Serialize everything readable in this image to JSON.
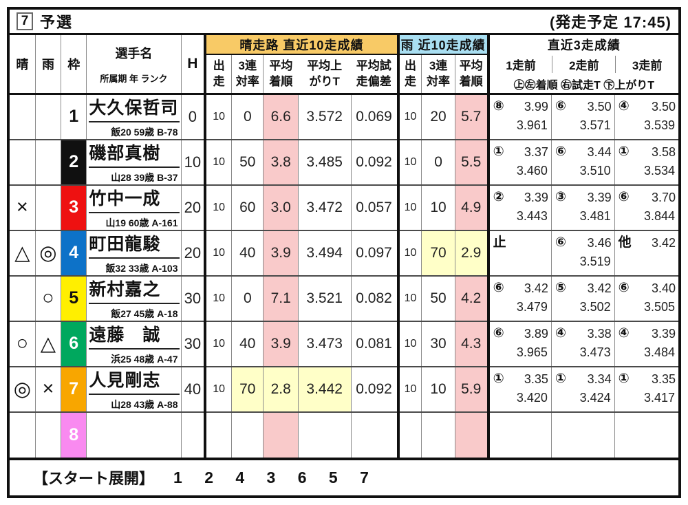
{
  "title": {
    "race_number": "7",
    "race_name": "予選",
    "start_time_label": "(発走予定 17:45)"
  },
  "header": {
    "sunny": "晴",
    "rain": "雨",
    "frame": "枠",
    "racer_name": "選手名",
    "racer_sub": "所属期 年 ランク",
    "handicap": "H",
    "sunny_group": "晴走路 直近10走成績",
    "rain_group": "雨 近10走成績",
    "recent3_group": "直近3走成績",
    "sunny_cols": [
      {
        "t": "出",
        "b": "走"
      },
      {
        "t": "3連",
        "b": "対率"
      },
      {
        "t": "平均",
        "b": "着順"
      },
      {
        "t": "平均上",
        "b": "がりT"
      },
      {
        "t": "平均試",
        "b": "走偏差"
      }
    ],
    "rain_cols": [
      {
        "t": "出",
        "b": "走"
      },
      {
        "t": "3連",
        "b": "対率"
      },
      {
        "t": "平均",
        "b": "着順"
      }
    ],
    "recent3_cols": [
      "1走前",
      "2走前",
      "3走前"
    ],
    "recent3_legend": "㊤㊧着順 ㊨試走T ㊦上がりT"
  },
  "rows": [
    {
      "sunny_mark": "",
      "rain_mark": "",
      "frame": "1",
      "frame_bg": "#ffffff",
      "frame_fg": "#111111",
      "name": "大久保哲司",
      "sub": "飯20 59歳 B-78",
      "h": "0",
      "s": {
        "st": "10",
        "tri": "0",
        "avg": "6.6",
        "lap": "3.572",
        "dev": "0.069"
      },
      "r": {
        "st": "10",
        "tri": "20",
        "avg": "5.7"
      },
      "r3": [
        {
          "p": "⑧",
          "t": "3.99",
          "l": "3.961"
        },
        {
          "p": "⑥",
          "t": "3.50",
          "l": "3.571"
        },
        {
          "p": "④",
          "t": "3.50",
          "l": "3.539"
        }
      ]
    },
    {
      "sunny_mark": "",
      "rain_mark": "",
      "frame": "2",
      "frame_bg": "#101010",
      "frame_fg": "#ffffff",
      "name": "磯部真樹",
      "sub": "山28 39歳 B-37",
      "h": "10",
      "s": {
        "st": "10",
        "tri": "50",
        "avg": "3.8",
        "lap": "3.485",
        "dev": "0.092"
      },
      "r": {
        "st": "10",
        "tri": "0",
        "avg": "5.5"
      },
      "r3": [
        {
          "p": "①",
          "t": "3.37",
          "l": "3.460"
        },
        {
          "p": "⑥",
          "t": "3.44",
          "l": "3.510"
        },
        {
          "p": "①",
          "t": "3.58",
          "l": "3.534"
        }
      ]
    },
    {
      "sunny_mark": "×",
      "rain_mark": "",
      "frame": "3",
      "frame_bg": "#ee1111",
      "frame_fg": "#ffffff",
      "name": "竹中一成",
      "sub": "山19 60歳 A-161",
      "h": "20",
      "s": {
        "st": "10",
        "tri": "60",
        "avg": "3.0",
        "lap": "3.472",
        "dev": "0.057"
      },
      "r": {
        "st": "10",
        "tri": "10",
        "avg": "4.9"
      },
      "r3": [
        {
          "p": "②",
          "t": "3.39",
          "l": "3.443"
        },
        {
          "p": "③",
          "t": "3.39",
          "l": "3.481"
        },
        {
          "p": "⑥",
          "t": "3.70",
          "l": "3.844"
        }
      ]
    },
    {
      "sunny_mark": "△",
      "rain_mark": "◎",
      "frame": "4",
      "frame_bg": "#0d72c8",
      "frame_fg": "#ffffff",
      "name": "町田龍駿",
      "sub": "飯32 33歳 A-103",
      "h": "20",
      "s": {
        "st": "10",
        "tri": "40",
        "avg": "3.9",
        "lap": "3.494",
        "dev": "0.097"
      },
      "r": {
        "st": "10",
        "tri": "70",
        "avg": "2.9",
        "hl_tri": true,
        "hl_avg": true
      },
      "r3": [
        {
          "p": "止",
          "t": "",
          "l": ""
        },
        {
          "p": "⑥",
          "t": "3.46",
          "l": "3.519"
        },
        {
          "p": "他",
          "t": "3.42",
          "l": ""
        }
      ]
    },
    {
      "sunny_mark": "",
      "rain_mark": "○",
      "frame": "5",
      "frame_bg": "#ffef00",
      "frame_fg": "#111111",
      "name": "新村嘉之",
      "sub": "飯27 45歳 A-18",
      "h": "30",
      "s": {
        "st": "10",
        "tri": "0",
        "avg": "7.1",
        "lap": "3.521",
        "dev": "0.082"
      },
      "r": {
        "st": "10",
        "tri": "50",
        "avg": "4.2"
      },
      "r3": [
        {
          "p": "⑥",
          "t": "3.42",
          "l": "3.479"
        },
        {
          "p": "⑤",
          "t": "3.42",
          "l": "3.502"
        },
        {
          "p": "⑥",
          "t": "3.40",
          "l": "3.505"
        }
      ]
    },
    {
      "sunny_mark": "○",
      "rain_mark": "△",
      "frame": "6",
      "frame_bg": "#00a85e",
      "frame_fg": "#ffffff",
      "name": "遠藤　誠",
      "sub": "浜25 48歳 A-47",
      "h": "30",
      "s": {
        "st": "10",
        "tri": "40",
        "avg": "3.9",
        "lap": "3.473",
        "dev": "0.081"
      },
      "r": {
        "st": "10",
        "tri": "30",
        "avg": "4.3"
      },
      "r3": [
        {
          "p": "⑥",
          "t": "3.89",
          "l": "3.965"
        },
        {
          "p": "④",
          "t": "3.38",
          "l": "3.473"
        },
        {
          "p": "④",
          "t": "3.39",
          "l": "3.484"
        }
      ]
    },
    {
      "sunny_mark": "◎",
      "rain_mark": "×",
      "frame": "7",
      "frame_bg": "#f8a600",
      "frame_fg": "#ffffff",
      "name": "人見剛志",
      "sub": "山28 43歳 A-88",
      "h": "40",
      "s": {
        "st": "10",
        "tri": "70",
        "avg": "2.8",
        "lap": "3.442",
        "dev": "0.092",
        "hl_tri": true,
        "hl_avg": true,
        "hl_lap": true
      },
      "r": {
        "st": "10",
        "tri": "10",
        "avg": "5.9"
      },
      "r3": [
        {
          "p": "①",
          "t": "3.35",
          "l": "3.420"
        },
        {
          "p": "①",
          "t": "3.34",
          "l": "3.424"
        },
        {
          "p": "①",
          "t": "3.35",
          "l": "3.417"
        }
      ]
    },
    {
      "sunny_mark": "",
      "rain_mark": "",
      "frame": "8",
      "frame_bg": "#f98af0",
      "frame_fg": "#ffffff",
      "name": "",
      "sub": "",
      "h": "",
      "s": {
        "st": "",
        "tri": "",
        "avg": "",
        "lap": "",
        "dev": ""
      },
      "r": {
        "st": "",
        "tri": "",
        "avg": ""
      },
      "r3": [
        {
          "p": "",
          "t": "",
          "l": ""
        },
        {
          "p": "",
          "t": "",
          "l": ""
        },
        {
          "p": "",
          "t": "",
          "l": ""
        }
      ]
    }
  ],
  "footer": {
    "label": "【スタート展開】",
    "order": "1 2 4 3 6 5 7"
  },
  "colors": {
    "sunny_header_bg": "#f8ca66",
    "rain_header_bg": "#a9dff2",
    "avg_finish_highlight_bg": "#f9caca",
    "hot_highlight_bg": "#ffffc8",
    "hot_highlight_text": "#e60000"
  }
}
